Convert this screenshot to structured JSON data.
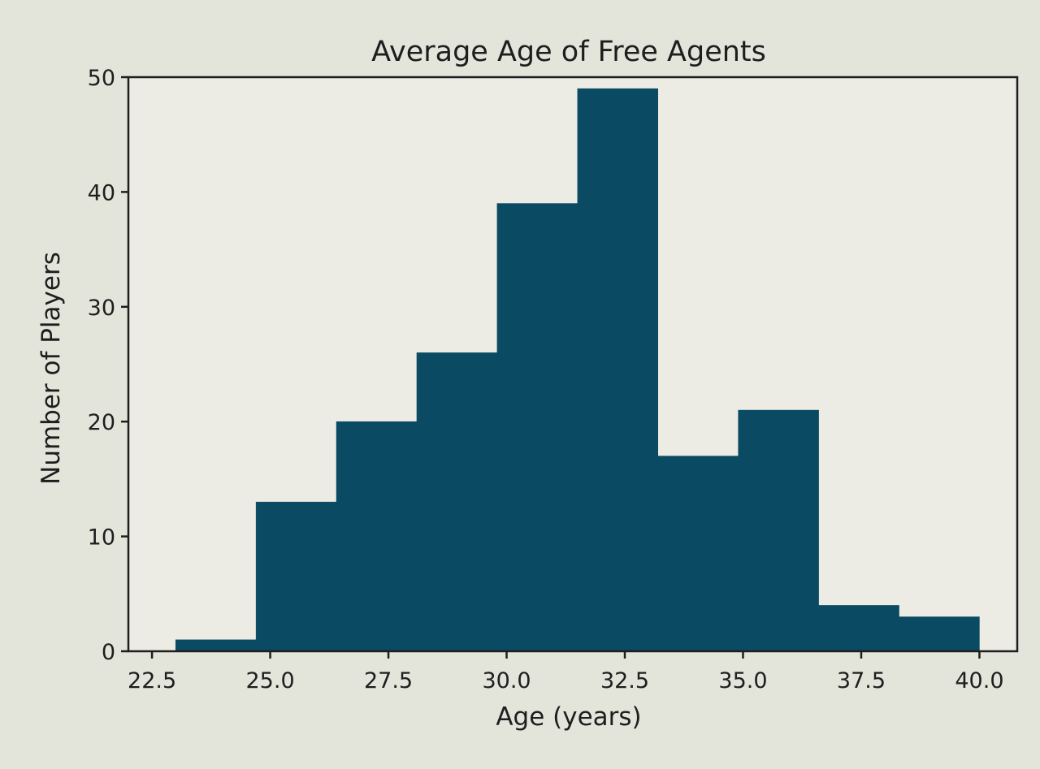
{
  "chart_data": {
    "type": "bar",
    "subtype": "histogram",
    "title": "Average Age of Free Agents",
    "xlabel": "Age (years)",
    "ylabel": "Number of Players",
    "bin_edges": [
      23.0,
      24.7,
      26.4,
      28.1,
      29.8,
      31.5,
      33.2,
      34.9,
      36.6,
      38.3,
      40.0
    ],
    "values": [
      1,
      13,
      20,
      26,
      39,
      49,
      17,
      21,
      4,
      3
    ],
    "xlim": [
      22.0,
      40.8
    ],
    "ylim": [
      0,
      50
    ],
    "xticks": [
      22.5,
      25.0,
      27.5,
      30.0,
      32.5,
      35.0,
      37.5,
      40.0
    ],
    "xtick_labels": [
      "22.5",
      "25.0",
      "27.5",
      "30.0",
      "32.5",
      "35.0",
      "37.5",
      "40.0"
    ],
    "yticks": [
      0,
      10,
      20,
      30,
      40,
      50
    ],
    "ytick_labels": [
      "0",
      "10",
      "20",
      "30",
      "40",
      "50"
    ],
    "bar_color": "#0b4a63",
    "grid": false,
    "legend": "none"
  }
}
